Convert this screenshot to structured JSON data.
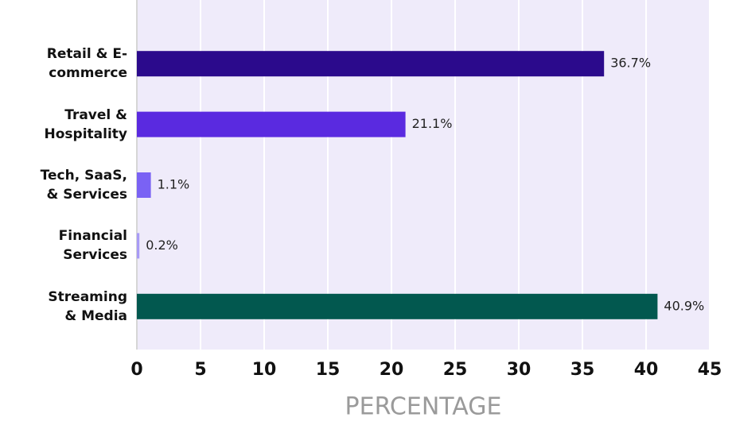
{
  "chart_data": {
    "type": "bar",
    "orientation": "horizontal",
    "categories": [
      "Retail & E-commerce",
      "Travel & Hospitality",
      "Tech, SaaS, & Services",
      "Financial Services",
      "Streaming & Media"
    ],
    "values": [
      36.7,
      21.1,
      1.1,
      0.2,
      40.9
    ],
    "value_labels": [
      "36.7%",
      "21.1%",
      "1.1%",
      "0.2%",
      "40.9%"
    ],
    "colors": [
      "#2b0a8c",
      "#5a2ae0",
      "#7a62f4",
      "#a89bf6",
      "#02584f"
    ],
    "xlabel": "PERCENTAGE",
    "xlim": [
      0,
      45
    ],
    "xticks": [
      0,
      5,
      10,
      15,
      20,
      25,
      30,
      35,
      40,
      45
    ],
    "grid": true
  }
}
